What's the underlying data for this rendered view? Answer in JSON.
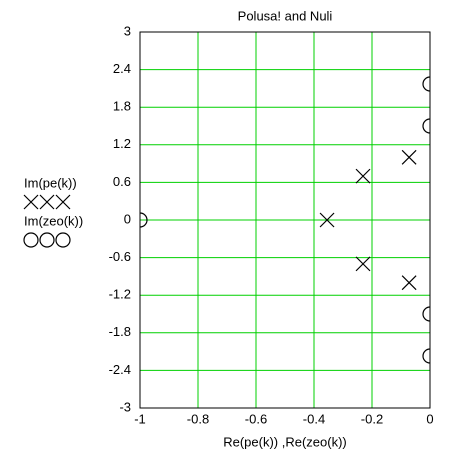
{
  "chart_data": {
    "type": "scatter",
    "title": "Polusa! and Nuli",
    "x_label": "Re(pe(k)) ,Re(zeo(k))",
    "series": [
      {
        "name": "Im(pe(k))",
        "marker": "x",
        "color": "#000000",
        "x": [
          -0.355,
          -0.231,
          -0.231,
          -0.072,
          -0.072
        ],
        "values": [
          0,
          0.7,
          -0.7,
          1.0,
          -1.0
        ]
      },
      {
        "name": "Im(zeo(k))",
        "marker": "o",
        "color": "#000000",
        "x": [
          -1,
          0,
          0,
          0,
          0
        ],
        "values": [
          0,
          1.5,
          -1.5,
          2.17,
          -2.17
        ]
      }
    ],
    "xlim": [
      -1,
      0
    ],
    "ylim": [
      -3,
      3
    ],
    "xticks": [
      -1,
      -0.8,
      -0.6,
      -0.4,
      -0.2,
      0
    ],
    "yticks": [
      3,
      2.4,
      1.8,
      1.2,
      0.6,
      0,
      -0.6,
      -1.2,
      -1.8,
      -2.4,
      -3
    ],
    "grid": true,
    "grid_color": "#00d000"
  }
}
